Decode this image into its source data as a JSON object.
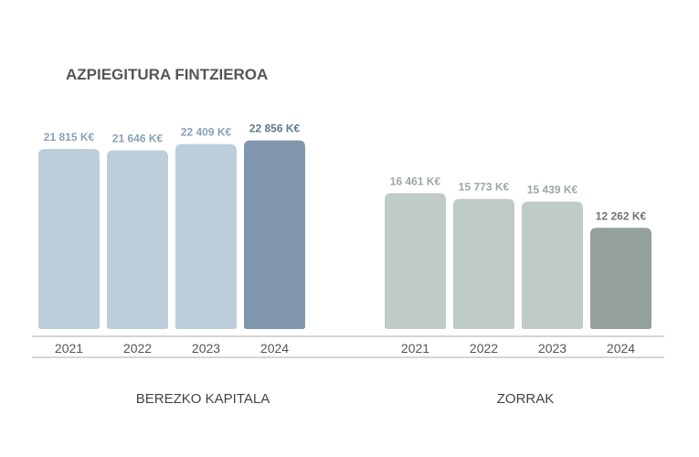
{
  "chart_data": {
    "title": "AZPIEGITURA FINTZIEROA",
    "type": "bar",
    "categories": [
      "2021",
      "2022",
      "2023",
      "2024"
    ],
    "ylim": [
      0,
      25000
    ],
    "groups": [
      {
        "label": "BEREZKO KAPITALA",
        "values": [
          21815,
          21646,
          22409,
          22856
        ],
        "value_labels": [
          "21 815 K€",
          "21 646 K€",
          "22 409 K€",
          "22 856 K€"
        ],
        "color": "#bccedb",
        "highlight_color": "#8097ae",
        "label_color": "#8aa1b6",
        "highlight_label_color": "#5f7890"
      },
      {
        "label": "ZORRAK",
        "values": [
          16461,
          15773,
          15439,
          12262
        ],
        "value_labels": [
          "16 461 K€",
          "15 773 K€",
          "15 439 K€",
          "12 262 K€"
        ],
        "color": "#bfcbc6",
        "highlight_color": "#93a19a",
        "label_color": "#9aa8a2",
        "highlight_label_color": "#6a7771"
      }
    ]
  }
}
